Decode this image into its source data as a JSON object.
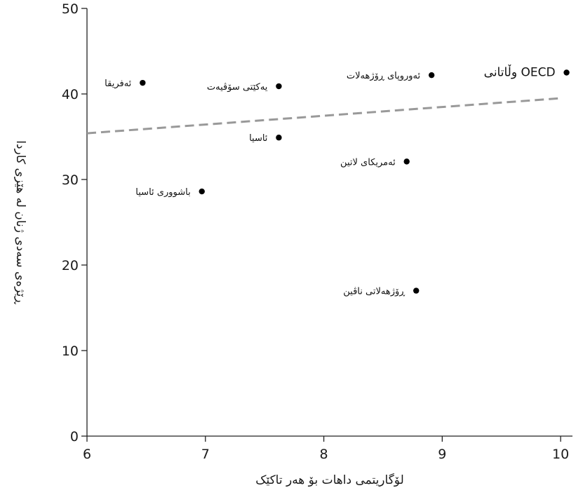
{
  "chart_data": {
    "type": "scatter",
    "xlabel": "لۆگاریتمی داهات بۆ هەر تاکێک",
    "ylabel": "ڕێژەی سەدی ژنان لە هێزی کاردا",
    "xlim": [
      6,
      10.1
    ],
    "ylim": [
      0,
      50
    ],
    "xticks": [
      6,
      7,
      8,
      9,
      10
    ],
    "yticks": [
      0,
      10,
      20,
      30,
      40,
      50
    ],
    "grid": false,
    "points": [
      {
        "x": 6.47,
        "y": 41.3,
        "label": "ئەفریقا"
      },
      {
        "x": 7.62,
        "y": 40.9,
        "label": "یەکێتی سۆڤیەت"
      },
      {
        "x": 8.91,
        "y": 42.2,
        "label": "ئەوروپای ڕۆژهەلات"
      },
      {
        "x": 10.05,
        "y": 42.5,
        "label": "وڵاتانی OECD"
      },
      {
        "x": 7.62,
        "y": 34.9,
        "label": "ئاسیا"
      },
      {
        "x": 8.7,
        "y": 32.1,
        "label": "ئەمریکای لاتین"
      },
      {
        "x": 6.97,
        "y": 28.6,
        "label": "باشووری ئاسیا"
      },
      {
        "x": 8.78,
        "y": 17.0,
        "label": "ڕۆژهەلاتی ناڤین"
      }
    ],
    "trendline": {
      "style": "dashed",
      "color": "#999999",
      "start": [
        6.0,
        35.4
      ],
      "end": [
        10.0,
        39.5
      ]
    }
  }
}
